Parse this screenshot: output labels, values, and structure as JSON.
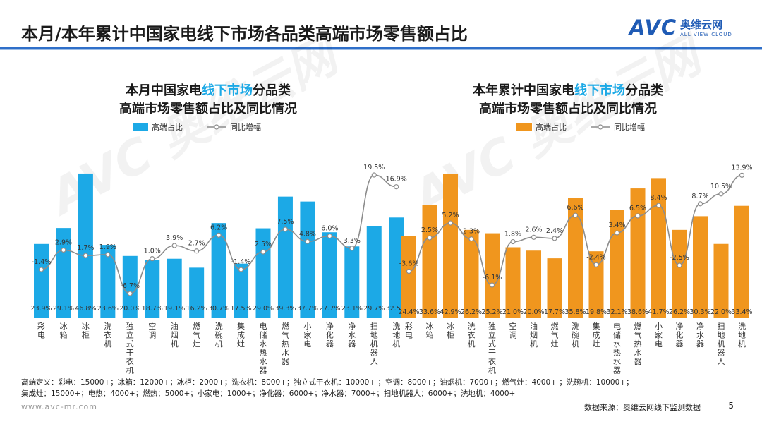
{
  "page": {
    "title": "本月/本年累计中国家电线下市场各品类高端市场零售额占比",
    "logo": {
      "mark": "AVC",
      "cn": "奥维云网",
      "en": "ALL VIEW CLOUD"
    },
    "watermark": "AVC 奥维云网",
    "definition_line1": "高端定义：彩电：15000+；冰箱：12000+；冰柜：2000+；洗衣机：8000+；独立式干衣机：10000+ ；空调：8000+；油烟机：7000+；燃气灶：4000+ ；洗碗机：10000+；",
    "definition_line2": "集成灶：15000+；电热：4000+；燃热：5000+；小家电：1000+；净化器：6000+；净水器：7000+；扫地机器人：6000+；洗地机：4000+",
    "url": "www.avc-mr.com",
    "source": "数据来源：奥维云网线下监测数据",
    "page_number": "-5-"
  },
  "chart_data": [
    {
      "type": "bar",
      "title_prefix": "本月中国家电",
      "title_highlight": "线下市场",
      "title_suffix": "分品类",
      "title_line2": "高端市场零售额占比及同比情况",
      "legend": {
        "bar": "高端占比",
        "line": "同比增幅"
      },
      "bar_color": "#1ca9e6",
      "line_color": "#8c8c8c",
      "highlight_color": "#1ca9e6",
      "categories": [
        "彩电",
        "冰箱",
        "冰柜",
        "洗衣机",
        "独立式干衣机",
        "空调",
        "油烟机",
        "燃气灶",
        "洗碗机",
        "集成灶",
        "电储水热水器",
        "燃气热水器",
        "小家电",
        "净化器",
        "净水器",
        "扫地机器人",
        "洗地机"
      ],
      "series": [
        {
          "name": "高端占比",
          "kind": "bar",
          "values": [
            23.9,
            29.1,
            46.8,
            23.6,
            20.0,
            18.7,
            19.1,
            16.2,
            30.7,
            17.5,
            29.0,
            39.3,
            37.7,
            27.7,
            23.1,
            29.7,
            32.5
          ],
          "labels": [
            "23.9%",
            "29.1%",
            "46.8%",
            "23.6%",
            "20.0%",
            "18.7%",
            "19.1%",
            "16.2%",
            "30.7%",
            "17.5%",
            "29.0%",
            "39.3%",
            "37.7%",
            "27.7%",
            "23.1%",
            "29.7%",
            "32.5%"
          ]
        },
        {
          "name": "同比增幅",
          "kind": "line",
          "values": [
            -1.4,
            2.9,
            1.7,
            1.9,
            -6.7,
            1.0,
            3.9,
            2.7,
            6.2,
            -1.4,
            2.5,
            7.5,
            4.8,
            6.0,
            3.3,
            19.5,
            16.9
          ],
          "labels": [
            "-1.4%",
            "2.9%",
            "1.7%",
            "1.9%",
            "-6.7%",
            "1.0%",
            "3.9%",
            "2.7%",
            "6.2%",
            "-1.4%",
            "2.5%",
            "7.5%",
            "4.8%",
            "6.0%",
            "3.3%",
            "19.5%",
            "16.9%"
          ]
        }
      ],
      "bar_max": 50,
      "line_range": [
        -12,
        22
      ]
    },
    {
      "type": "bar",
      "title_prefix": "本年累计中国家电",
      "title_highlight": "线下市场",
      "title_suffix": "分品类",
      "title_line2": "高端市场零售额占比及同比情况",
      "legend": {
        "bar": "高端占比",
        "line": "同比增幅"
      },
      "bar_color": "#f0961e",
      "line_color": "#8c8c8c",
      "highlight_color": "#1ca9e6",
      "categories": [
        "彩电",
        "冰箱",
        "冰柜",
        "洗衣机",
        "独立式干衣机",
        "空调",
        "油烟机",
        "燃气灶",
        "洗碗机",
        "集成灶",
        "电储水热水器",
        "燃气热水器",
        "小家电",
        "净化器",
        "净水器",
        "扫地机器人",
        "洗地机"
      ],
      "series": [
        {
          "name": "高端占比",
          "kind": "bar",
          "values": [
            24.4,
            33.6,
            42.9,
            26.2,
            25.2,
            21.0,
            20.0,
            17.7,
            35.8,
            19.8,
            32.1,
            38.6,
            41.7,
            26.2,
            30.3,
            22.0,
            33.4
          ],
          "labels": [
            "24.4%",
            "33.6%",
            "42.9%",
            "26.2%",
            "25.2%",
            "21.0%",
            "20.0%",
            "17.7%",
            "35.8%",
            "19.8%",
            "32.1%",
            "38.6%",
            "41.7%",
            "26.2%",
            "30.3%",
            "22.0%",
            "33.4%"
          ]
        },
        {
          "name": "同比增幅",
          "kind": "line",
          "values": [
            -3.6,
            2.5,
            5.2,
            2.3,
            -6.1,
            1.8,
            2.6,
            2.4,
            6.6,
            -2.4,
            3.4,
            6.5,
            8.4,
            -2.5,
            8.7,
            10.5,
            13.9
          ],
          "labels": [
            "-3.6%",
            "2.5%",
            "5.2%",
            "2.3%",
            "-6.1%",
            "1.8%",
            "2.6%",
            "2.4%",
            "6.6%",
            "-2.4%",
            "3.4%",
            "6.5%",
            "8.4%",
            "-2.5%",
            "8.7%",
            "10.5%",
            "13.9%"
          ]
        }
      ],
      "bar_max": 46,
      "line_range": [
        -12,
        16
      ]
    }
  ]
}
